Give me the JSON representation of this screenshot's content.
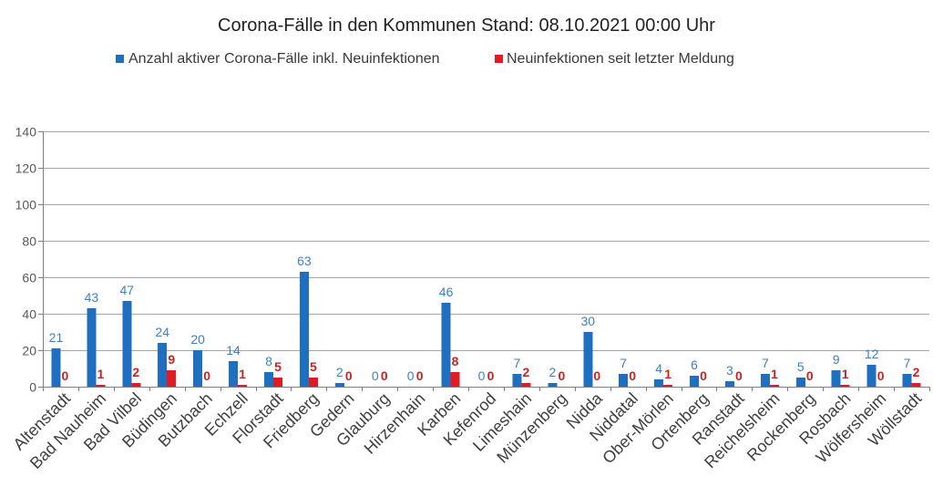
{
  "chart_data": {
    "type": "bar",
    "title": "Corona-Fälle in den Kommunen Stand: 08.10.2021 00:00 Uhr",
    "categories": [
      "Altenstadt",
      "Bad Nauheim",
      "Bad Vilbel",
      "Büdingen",
      "Butzbach",
      "Echzell",
      "Florstadt",
      "Friedberg",
      "Gedern",
      "Glauburg",
      "Hirzenhain",
      "Karben",
      "Kefenrod",
      "Limeshain",
      "Münzenberg",
      "Nidda",
      "Niddatal",
      "Ober-Mörlen",
      "Ortenberg",
      "Ranstadt",
      "Reichelsheim",
      "Rockenberg",
      "Rosbach",
      "Wölfersheim",
      "Wöllstadt"
    ],
    "series": [
      {
        "name": "Anzahl aktiver Corona-Fälle inkl. Neuinfektionen",
        "color": "#1f6fc1",
        "label_color": "#3d80c6",
        "values": [
          21,
          43,
          47,
          24,
          20,
          14,
          8,
          63,
          2,
          0,
          0,
          46,
          0,
          7,
          2,
          30,
          7,
          4,
          6,
          3,
          7,
          5,
          9,
          12,
          7
        ]
      },
      {
        "name": "Neuinfektionen seit letzter Meldung",
        "color": "#e01b22",
        "label_color": "#c8231f",
        "values": [
          0,
          1,
          2,
          9,
          0,
          1,
          5,
          5,
          0,
          0,
          0,
          8,
          0,
          2,
          0,
          0,
          0,
          1,
          0,
          0,
          1,
          0,
          1,
          0,
          2
        ]
      }
    ],
    "ylim": [
      0,
      140
    ],
    "yticks": [
      0,
      20,
      40,
      60,
      80,
      100,
      120,
      140
    ],
    "grid": true,
    "legend": "top",
    "data_labels": true
  }
}
